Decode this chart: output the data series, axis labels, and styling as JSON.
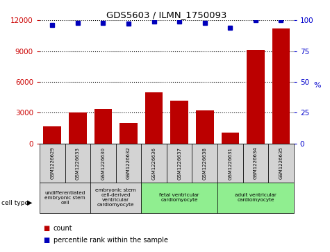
{
  "title": "GDS5603 / ILMN_1750093",
  "samples": [
    "GSM1226629",
    "GSM1226633",
    "GSM1226630",
    "GSM1226632",
    "GSM1226636",
    "GSM1226637",
    "GSM1226638",
    "GSM1226631",
    "GSM1226634",
    "GSM1226635"
  ],
  "counts": [
    1700,
    3050,
    3350,
    2000,
    5000,
    4200,
    3200,
    1050,
    9100,
    11200
  ],
  "percentiles": [
    96,
    98,
    98,
    97,
    99,
    99,
    98,
    94,
    100,
    100
  ],
  "ylim_left": [
    0,
    12000
  ],
  "ylim_right": [
    0,
    100
  ],
  "yticks_left": [
    0,
    3000,
    6000,
    9000,
    12000
  ],
  "yticks_right": [
    0,
    25,
    50,
    75,
    100
  ],
  "bar_color": "#bb0000",
  "dot_color": "#0000bb",
  "cell_types": [
    {
      "label": "undifferentiated\nembryonic stem\ncell",
      "start": 0,
      "end": 2,
      "color": "#d3d3d3"
    },
    {
      "label": "embryonic stem\ncell-derived\nventricular\ncardiomyocyte",
      "start": 2,
      "end": 4,
      "color": "#d3d3d3"
    },
    {
      "label": "fetal ventricular\ncardiomyocyte",
      "start": 4,
      "end": 7,
      "color": "#90ee90"
    },
    {
      "label": "adult ventricular\ncardiomyocyte",
      "start": 7,
      "end": 10,
      "color": "#90ee90"
    }
  ],
  "legend_count_label": "count",
  "legend_percentile_label": "percentile rank within the sample",
  "cell_type_label": "cell type",
  "bar_color_left": "#cc0000",
  "tick_color_left": "#cc0000",
  "tick_color_right": "#0000cc",
  "grid_color": "#000000",
  "sample_bg_color": "#d3d3d3"
}
